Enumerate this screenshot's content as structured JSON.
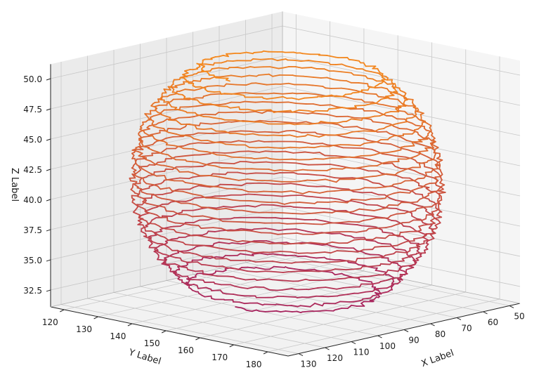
{
  "chart_data": {
    "type": "line3d",
    "xlabel": "X Label",
    "ylabel": "Y Label",
    "zlabel": "Z Label",
    "x_ticks": [
      "50",
      "60",
      "70",
      "80",
      "90",
      "100",
      "110",
      "120",
      "130"
    ],
    "y_ticks": [
      "120",
      "130",
      "140",
      "150",
      "160",
      "170",
      "180"
    ],
    "z_ticks": [
      "32.5",
      "35.0",
      "37.5",
      "40.0",
      "42.5",
      "45.0",
      "47.5",
      "50.0"
    ],
    "xlim": [
      46,
      134
    ],
    "ylim": [
      116,
      186
    ],
    "zlim": [
      31.1,
      51.2
    ],
    "grid": true,
    "spiral": {
      "z_start": 31.8,
      "z_end": 50.6,
      "turns": 22,
      "center_x": 88,
      "center_y": 150,
      "max_radius": 36,
      "color_bottom": "#a8255f",
      "color_top": "#f5891c"
    }
  }
}
